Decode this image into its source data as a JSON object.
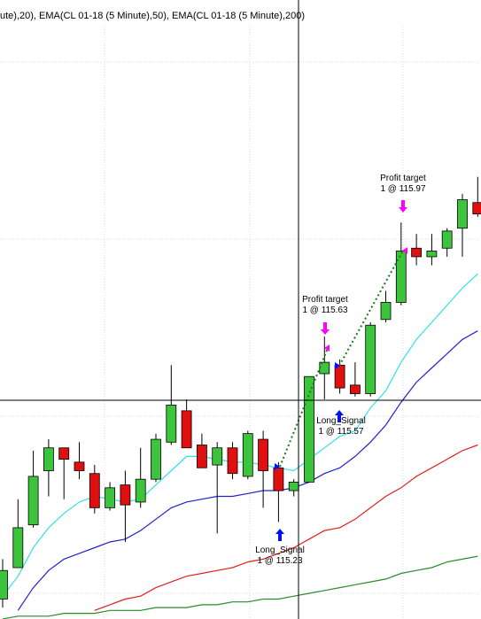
{
  "chart_data": {
    "type": "candlestick",
    "title": "ute),20), EMA(CL 01-18 (5 Minute),50), EMA(CL 01-18 (5 Minute),200)",
    "ylim": [
      114.68,
      116.85
    ],
    "up_color": "#3cc43c",
    "down_color": "#e01010",
    "open": [
      114.75,
      114.86,
      115.01,
      115.2,
      115.28,
      115.23,
      115.19,
      115.07,
      115.15,
      115.09,
      115.17,
      115.3,
      115.41,
      115.29,
      115.22,
      115.28,
      115.18,
      115.31,
      115.21,
      115.13,
      115.16,
      115.54,
      115.57,
      115.5,
      115.47,
      115.73,
      115.79,
      115.98,
      115.95,
      115.98,
      116.05,
      116.14
    ],
    "high": [
      114.89,
      115.1,
      115.27,
      115.31,
      115.28,
      115.3,
      115.22,
      115.16,
      115.2,
      115.28,
      115.33,
      115.57,
      115.45,
      115.33,
      115.3,
      115.3,
      115.34,
      115.34,
      115.23,
      115.17,
      115.53,
      115.67,
      115.59,
      115.58,
      115.72,
      115.83,
      116.07,
      116.03,
      116.03,
      116.05,
      116.17,
      116.23
    ],
    "low": [
      114.72,
      114.86,
      115.0,
      115.11,
      115.1,
      115.17,
      115.05,
      115.06,
      114.95,
      115.07,
      115.16,
      115.29,
      115.28,
      115.21,
      114.98,
      115.17,
      115.17,
      115.07,
      115.02,
      115.11,
      115.16,
      115.45,
      115.47,
      115.46,
      115.46,
      115.72,
      115.78,
      115.92,
      115.92,
      115.95,
      115.95,
      116.09
    ],
    "close": [
      114.85,
      115.0,
      115.18,
      115.28,
      115.24,
      115.2,
      115.07,
      115.14,
      115.08,
      115.17,
      115.31,
      115.43,
      115.28,
      115.21,
      115.28,
      115.19,
      115.33,
      115.2,
      115.13,
      115.16,
      115.53,
      115.58,
      115.49,
      115.47,
      115.71,
      115.79,
      115.97,
      115.95,
      115.97,
      116.04,
      116.15,
      116.1
    ],
    "lines": [
      {
        "color": "#33e0e6",
        "values": [
          114.76,
          114.83,
          114.93,
          115.0,
          115.05,
          115.09,
          115.11,
          115.1,
          115.09,
          115.1,
          115.15,
          115.2,
          115.25,
          115.25,
          115.24,
          115.23,
          115.23,
          115.22,
          115.21,
          115.2,
          115.24,
          115.28,
          115.32,
          115.34,
          115.42,
          115.48,
          115.58,
          115.66,
          115.72,
          115.78,
          115.84,
          115.89
        ]
      },
      {
        "color": "#2020d0",
        "values": [
          null,
          114.71,
          114.79,
          114.85,
          114.89,
          114.91,
          114.93,
          114.95,
          114.96,
          114.99,
          115.03,
          115.07,
          115.09,
          115.1,
          115.11,
          115.11,
          115.12,
          115.13,
          115.13,
          115.14,
          115.16,
          115.19,
          115.21,
          115.25,
          115.3,
          115.36,
          115.44,
          115.51,
          115.56,
          115.61,
          115.66,
          115.69
        ]
      },
      {
        "color": "#e02020",
        "values": [
          null,
          null,
          null,
          null,
          null,
          null,
          114.71,
          114.73,
          114.75,
          114.76,
          114.79,
          114.81,
          114.83,
          114.84,
          114.85,
          114.86,
          114.88,
          114.89,
          114.91,
          114.93,
          114.96,
          114.99,
          115.0,
          115.03,
          115.07,
          115.11,
          115.14,
          115.18,
          115.21,
          115.24,
          115.27,
          115.29
        ]
      },
      {
        "color": "#2a8a2a",
        "values": [
          114.68,
          114.69,
          114.69,
          114.69,
          114.7,
          114.7,
          114.7,
          114.71,
          114.71,
          114.71,
          114.72,
          114.72,
          114.72,
          114.73,
          114.73,
          114.74,
          114.74,
          114.75,
          114.75,
          114.76,
          114.77,
          114.78,
          114.79,
          114.8,
          114.81,
          114.82,
          114.84,
          114.85,
          114.86,
          114.88,
          114.89,
          114.9
        ]
      }
    ],
    "annotations": [
      {
        "label": "Profit target",
        "detail": "1 @ 115.97"
      },
      {
        "label": "Profit target",
        "detail": "1 @ 115.63"
      },
      {
        "label": "Long_Signal",
        "detail": "1 @ 115.57"
      },
      {
        "label": "Long_Signal",
        "detail": "1 @ 115.23"
      }
    ]
  }
}
